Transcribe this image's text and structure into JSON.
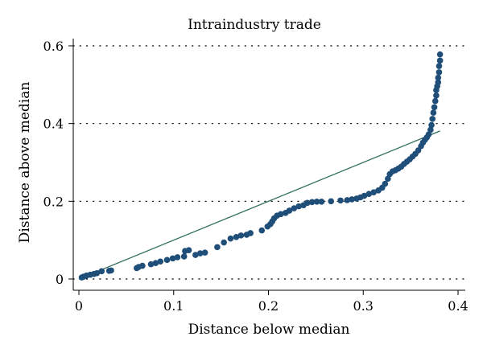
{
  "chart_data": {
    "type": "scatter",
    "title": "Intraindustry trade",
    "xlabel": "Distance below median",
    "ylabel": "Distance above median",
    "xlim": [
      0,
      0.4
    ],
    "ylim": [
      0,
      0.6
    ],
    "xticks": [
      0,
      0.1,
      0.2,
      0.3,
      0.4
    ],
    "yticks": [
      0,
      0.2,
      0.4,
      0.6
    ],
    "xtick_labels": [
      "0",
      "0.1",
      "0.2",
      "0.3",
      "0.4"
    ],
    "ytick_labels": [
      "0",
      "0.2",
      "0.4",
      "0.6"
    ],
    "grid": "horizontal-dotted",
    "colors": {
      "points": "#1f4e79",
      "reference_line": "#2e6e5e"
    },
    "reference_line": {
      "x": [
        0,
        0.381
      ],
      "y": [
        0,
        0.381
      ]
    },
    "points": [
      [
        0.003,
        0.004
      ],
      [
        0.005,
        0.006
      ],
      [
        0.008,
        0.009
      ],
      [
        0.012,
        0.011
      ],
      [
        0.016,
        0.013
      ],
      [
        0.019,
        0.015
      ],
      [
        0.024,
        0.02
      ],
      [
        0.032,
        0.021
      ],
      [
        0.034,
        0.022
      ],
      [
        0.061,
        0.028
      ],
      [
        0.063,
        0.031
      ],
      [
        0.067,
        0.034
      ],
      [
        0.076,
        0.038
      ],
      [
        0.081,
        0.041
      ],
      [
        0.086,
        0.045
      ],
      [
        0.093,
        0.049
      ],
      [
        0.099,
        0.053
      ],
      [
        0.104,
        0.056
      ],
      [
        0.111,
        0.058
      ],
      [
        0.123,
        0.062
      ],
      [
        0.128,
        0.066
      ],
      [
        0.133,
        0.068
      ],
      [
        0.112,
        0.072
      ],
      [
        0.116,
        0.074
      ],
      [
        0.146,
        0.082
      ],
      [
        0.153,
        0.094
      ],
      [
        0.16,
        0.104
      ],
      [
        0.166,
        0.108
      ],
      [
        0.171,
        0.112
      ],
      [
        0.177,
        0.114
      ],
      [
        0.181,
        0.118
      ],
      [
        0.193,
        0.125
      ],
      [
        0.199,
        0.135
      ],
      [
        0.202,
        0.141
      ],
      [
        0.204,
        0.148
      ],
      [
        0.206,
        0.156
      ],
      [
        0.209,
        0.163
      ],
      [
        0.213,
        0.167
      ],
      [
        0.218,
        0.17
      ],
      [
        0.222,
        0.176
      ],
      [
        0.227,
        0.182
      ],
      [
        0.232,
        0.187
      ],
      [
        0.237,
        0.19
      ],
      [
        0.241,
        0.196
      ],
      [
        0.246,
        0.198
      ],
      [
        0.251,
        0.199
      ],
      [
        0.256,
        0.199
      ],
      [
        0.266,
        0.2
      ],
      [
        0.276,
        0.202
      ],
      [
        0.283,
        0.203
      ],
      [
        0.288,
        0.205
      ],
      [
        0.293,
        0.207
      ],
      [
        0.297,
        0.21
      ],
      [
        0.301,
        0.214
      ],
      [
        0.306,
        0.219
      ],
      [
        0.311,
        0.223
      ],
      [
        0.316,
        0.228
      ],
      [
        0.32,
        0.235
      ],
      [
        0.323,
        0.245
      ],
      [
        0.326,
        0.258
      ],
      [
        0.328,
        0.27
      ],
      [
        0.331,
        0.277
      ],
      [
        0.334,
        0.28
      ],
      [
        0.337,
        0.284
      ],
      [
        0.34,
        0.289
      ],
      [
        0.343,
        0.296
      ],
      [
        0.346,
        0.302
      ],
      [
        0.349,
        0.308
      ],
      [
        0.352,
        0.315
      ],
      [
        0.355,
        0.322
      ],
      [
        0.358,
        0.331
      ],
      [
        0.361,
        0.342
      ],
      [
        0.363,
        0.351
      ],
      [
        0.365,
        0.358
      ],
      [
        0.367,
        0.364
      ],
      [
        0.369,
        0.372
      ],
      [
        0.371,
        0.384
      ],
      [
        0.372,
        0.396
      ],
      [
        0.373,
        0.412
      ],
      [
        0.374,
        0.428
      ],
      [
        0.375,
        0.442
      ],
      [
        0.376,
        0.458
      ],
      [
        0.377,
        0.472
      ],
      [
        0.377,
        0.486
      ],
      [
        0.378,
        0.496
      ],
      [
        0.379,
        0.506
      ],
      [
        0.379,
        0.518
      ],
      [
        0.38,
        0.532
      ],
      [
        0.38,
        0.548
      ],
      [
        0.381,
        0.562
      ],
      [
        0.381,
        0.578
      ]
    ]
  }
}
